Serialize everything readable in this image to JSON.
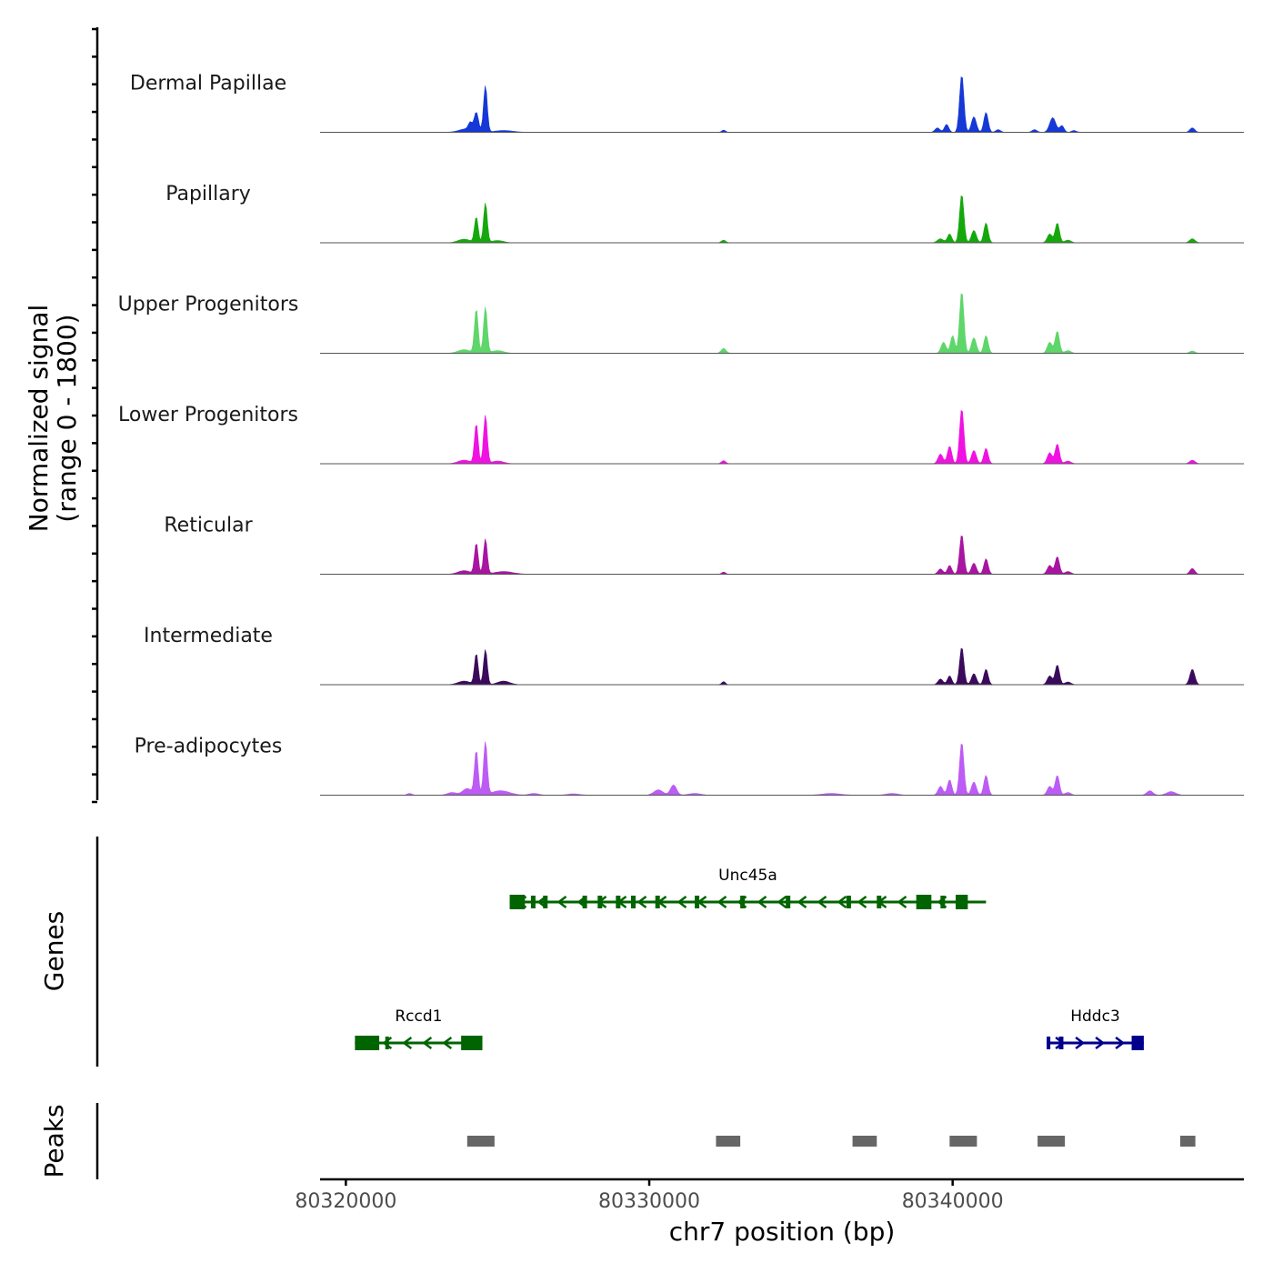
{
  "chart_data": {
    "type": "area",
    "title": "",
    "chromosome": "chr7",
    "xlabel": "chr7 position (bp)",
    "ylabel_line1": "Normalized signal",
    "ylabel_line2": "(range 0 - 1800)",
    "ylim": [
      0,
      1800
    ],
    "xlim": [
      80319150,
      80349600
    ],
    "x_ticks": [
      80320000,
      80330000,
      80340000
    ],
    "x_tick_labels": [
      "80320000",
      "80330000",
      "80340000"
    ],
    "coverage_tracks": [
      {
        "name": "Dermal Papillae",
        "color": "#1538d6",
        "peaks": [
          [
            80324100,
            160,
            60
          ],
          [
            80324300,
            420,
            70
          ],
          [
            80324600,
            1050,
            60
          ],
          [
            80324000,
            80,
            250
          ],
          [
            80325200,
            40,
            300
          ],
          [
            80332450,
            50,
            60
          ],
          [
            80339500,
            100,
            80
          ],
          [
            80339800,
            180,
            70
          ],
          [
            80340300,
            1300,
            70
          ],
          [
            80340700,
            350,
            80
          ],
          [
            80341100,
            450,
            70
          ],
          [
            80341500,
            60,
            80
          ],
          [
            80342700,
            60,
            80
          ],
          [
            80343300,
            330,
            100
          ],
          [
            80343600,
            150,
            70
          ],
          [
            80344000,
            40,
            80
          ],
          [
            80347900,
            100,
            80
          ]
        ]
      },
      {
        "name": "Papillary",
        "color": "#15a80d",
        "peaks": [
          [
            80323900,
            80,
            200
          ],
          [
            80324300,
            580,
            60
          ],
          [
            80324600,
            900,
            60
          ],
          [
            80325000,
            50,
            200
          ],
          [
            80332450,
            60,
            70
          ],
          [
            80339600,
            90,
            100
          ],
          [
            80339900,
            200,
            70
          ],
          [
            80340300,
            1100,
            70
          ],
          [
            80340700,
            280,
            80
          ],
          [
            80341100,
            450,
            70
          ],
          [
            80343200,
            200,
            80
          ],
          [
            80343450,
            450,
            70
          ],
          [
            80343800,
            60,
            100
          ],
          [
            80347900,
            90,
            90
          ]
        ]
      },
      {
        "name": "Upper Progenitors",
        "color": "#5ed66a",
        "peaks": [
          [
            80323900,
            80,
            200
          ],
          [
            80324300,
            1000,
            60
          ],
          [
            80324600,
            1050,
            60
          ],
          [
            80325000,
            60,
            200
          ],
          [
            80332450,
            110,
            80
          ],
          [
            80339700,
            250,
            80
          ],
          [
            80340000,
            400,
            70
          ],
          [
            80340300,
            1400,
            70
          ],
          [
            80340700,
            350,
            80
          ],
          [
            80341100,
            400,
            70
          ],
          [
            80343200,
            250,
            80
          ],
          [
            80343450,
            500,
            70
          ],
          [
            80343800,
            60,
            100
          ],
          [
            80347900,
            50,
            90
          ]
        ]
      },
      {
        "name": "Lower Progenitors",
        "color": "#f012e2",
        "peaks": [
          [
            80323900,
            80,
            200
          ],
          [
            80324300,
            900,
            60
          ],
          [
            80324600,
            1100,
            60
          ],
          [
            80325000,
            60,
            200
          ],
          [
            80332450,
            70,
            70
          ],
          [
            80339600,
            220,
            80
          ],
          [
            80339900,
            400,
            70
          ],
          [
            80340300,
            1250,
            70
          ],
          [
            80340700,
            300,
            80
          ],
          [
            80341100,
            350,
            70
          ],
          [
            80343200,
            250,
            80
          ],
          [
            80343450,
            450,
            70
          ],
          [
            80343800,
            60,
            100
          ],
          [
            80347900,
            80,
            90
          ]
        ]
      },
      {
        "name": "Reticular",
        "color": "#a815a1",
        "peaks": [
          [
            80323900,
            80,
            200
          ],
          [
            80324300,
            700,
            60
          ],
          [
            80324600,
            800,
            60
          ],
          [
            80325200,
            60,
            300
          ],
          [
            80332450,
            50,
            60
          ],
          [
            80339600,
            120,
            80
          ],
          [
            80339900,
            200,
            70
          ],
          [
            80340300,
            900,
            70
          ],
          [
            80340700,
            250,
            80
          ],
          [
            80341100,
            350,
            70
          ],
          [
            80343200,
            200,
            80
          ],
          [
            80343450,
            400,
            70
          ],
          [
            80343800,
            60,
            100
          ],
          [
            80347900,
            130,
            80
          ]
        ]
      },
      {
        "name": "Intermediate",
        "color": "#3b0a5c",
        "peaks": [
          [
            80323900,
            80,
            200
          ],
          [
            80324300,
            700,
            60
          ],
          [
            80324600,
            800,
            60
          ],
          [
            80325200,
            80,
            200
          ],
          [
            80332450,
            70,
            60
          ],
          [
            80339600,
            130,
            80
          ],
          [
            80339900,
            200,
            70
          ],
          [
            80340300,
            850,
            70
          ],
          [
            80340700,
            250,
            80
          ],
          [
            80341100,
            350,
            70
          ],
          [
            80343200,
            200,
            80
          ],
          [
            80343450,
            450,
            70
          ],
          [
            80343800,
            60,
            100
          ],
          [
            80347900,
            350,
            80
          ]
        ]
      },
      {
        "name": "Pre-adipocytes",
        "color": "#bc5cf5",
        "peaks": [
          [
            80322100,
            40,
            80
          ],
          [
            80323500,
            60,
            150
          ],
          [
            80324000,
            150,
            150
          ],
          [
            80324300,
            1000,
            60
          ],
          [
            80324600,
            1200,
            60
          ],
          [
            80325100,
            100,
            300
          ],
          [
            80326200,
            40,
            150
          ],
          [
            80327500,
            30,
            200
          ],
          [
            80330300,
            120,
            150
          ],
          [
            80330800,
            230,
            100
          ],
          [
            80331500,
            40,
            200
          ],
          [
            80336000,
            40,
            300
          ],
          [
            80338000,
            40,
            200
          ],
          [
            80339600,
            200,
            80
          ],
          [
            80339900,
            350,
            70
          ],
          [
            80340300,
            1200,
            70
          ],
          [
            80340700,
            300,
            80
          ],
          [
            80341100,
            450,
            70
          ],
          [
            80343200,
            200,
            80
          ],
          [
            80343450,
            450,
            70
          ],
          [
            80343800,
            60,
            100
          ],
          [
            80346500,
            100,
            100
          ],
          [
            80347200,
            80,
            150
          ]
        ]
      }
    ],
    "genes": [
      {
        "name": "Unc45a",
        "strand": "-",
        "color": "#006400",
        "start": 80325400,
        "end": 80341100,
        "exons": [
          [
            80325400,
            80325900
          ],
          [
            80326100,
            80326300
          ],
          [
            80326500,
            80326700
          ],
          [
            80327800,
            80328000
          ],
          [
            80328300,
            80328500
          ],
          [
            80328900,
            80329100
          ],
          [
            80329400,
            80329600
          ],
          [
            80330200,
            80330400
          ],
          [
            80331500,
            80331700
          ],
          [
            80333000,
            80333200
          ],
          [
            80334500,
            80334700
          ],
          [
            80336500,
            80336700
          ],
          [
            80337500,
            80337700
          ],
          [
            80338800,
            80339300
          ],
          [
            80339600,
            80339800
          ],
          [
            80340100,
            80340500
          ]
        ]
      },
      {
        "name": "Rccd1",
        "strand": "-",
        "color": "#006400",
        "start": 80320300,
        "end": 80324500,
        "exons": [
          [
            80320300,
            80321100
          ],
          [
            80321300,
            80321400
          ],
          [
            80323800,
            80324500
          ]
        ]
      },
      {
        "name": "Hddc3",
        "strand": "+",
        "color": "#00008b",
        "start": 80343100,
        "end": 80346300,
        "exons": [
          [
            80343100,
            80343200
          ],
          [
            80343500,
            80343700
          ],
          [
            80345900,
            80346300
          ]
        ]
      }
    ],
    "peaks_track": [
      [
        80324000,
        80324900
      ],
      [
        80332200,
        80333000
      ],
      [
        80336700,
        80337500
      ],
      [
        80339900,
        80340800
      ],
      [
        80342800,
        80343700
      ],
      [
        80347500,
        80348000
      ]
    ],
    "panel_labels": [
      "Genes",
      "Peaks"
    ]
  }
}
